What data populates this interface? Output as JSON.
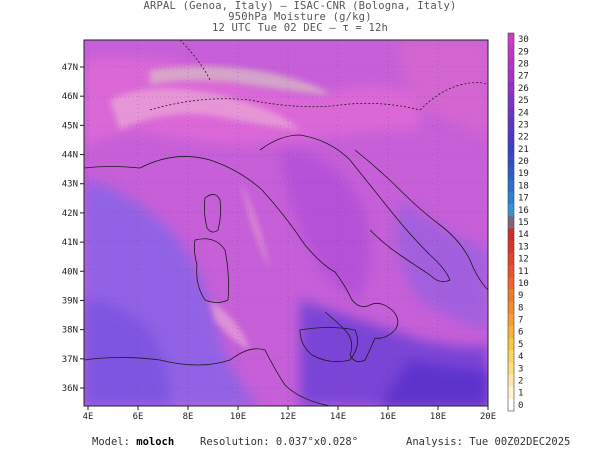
{
  "header": {
    "line1": "ARPAL (Genoa, Italy)  —  ISAC-CNR (Bologna, Italy)",
    "line2": "950hPa Moisture (g/kg)",
    "line3": "12 UTC Tue 02 DEC  —  τ = 12h"
  },
  "axes": {
    "lon_labels": [
      "4E",
      "6E",
      "8E",
      "10E",
      "12E",
      "14E",
      "16E",
      "18E",
      "20E"
    ],
    "lat_labels": [
      "36N",
      "37N",
      "38N",
      "39N",
      "40N",
      "41N",
      "42N",
      "43N",
      "44N",
      "45N",
      "46N",
      "47N"
    ]
  },
  "colorbar": {
    "labels": [
      "0",
      "1",
      "2",
      "3",
      "4",
      "5",
      "6",
      "7",
      "8",
      "9",
      "10",
      "11",
      "12",
      "13",
      "14",
      "15",
      "16",
      "17",
      "18",
      "19",
      "20",
      "21",
      "22",
      "23",
      "24",
      "25",
      "26",
      "27",
      "28",
      "29",
      "30"
    ]
  },
  "watermark": "ARPAL",
  "footer": {
    "model_label": "Model:",
    "model_value": "moloch",
    "resolution_label": "Resolution:",
    "resolution_value": "0.037°x0.028°",
    "analysis_label": "Analysis:",
    "analysis_value": "Tue 00Z02DEC2025"
  },
  "colors": {
    "field_main": "#b65ad6",
    "field_high": "#d957d8",
    "field_dry": "#8f63e6",
    "field_dark": "#6d3fd6",
    "coastline": "#1a1a1a"
  }
}
